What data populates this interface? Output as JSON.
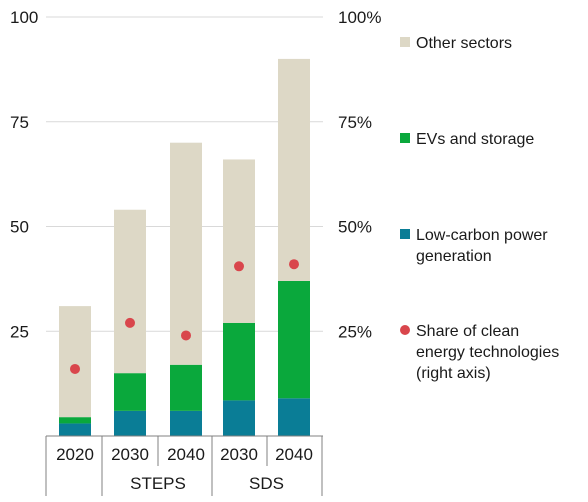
{
  "chart_data": {
    "type": "bar",
    "stacked": true,
    "categories": [
      "2020",
      "2030",
      "2040",
      "2030",
      "2040"
    ],
    "groups": [
      {
        "label": "",
        "categories": [
          0
        ]
      },
      {
        "label": "STEPS",
        "categories": [
          1,
          2
        ]
      },
      {
        "label": "SDS",
        "categories": [
          3,
          4
        ]
      }
    ],
    "series": [
      {
        "name": "Low-carbon power generation",
        "color": "#0a7d96",
        "values": [
          3,
          6,
          6,
          8.5,
          9
        ]
      },
      {
        "name": "EVs and storage",
        "color": "#0aa83c",
        "values": [
          1.5,
          9,
          11,
          18.5,
          28
        ]
      },
      {
        "name": "Other sectors",
        "color": "#ddd8c6",
        "values": [
          26.5,
          39,
          53,
          39,
          53
        ]
      }
    ],
    "dots": {
      "name": "Share of clean energy technologies (right axis)",
      "color": "#d9464c",
      "values": [
        16,
        27,
        24,
        40.5,
        41
      ]
    },
    "left_axis": {
      "min": 0,
      "max": 100,
      "ticks": [
        "25",
        "50",
        "75",
        "100"
      ],
      "tick_values": [
        25,
        50,
        75,
        100
      ]
    },
    "right_axis": {
      "min": 0,
      "max": 100,
      "ticks": [
        "25%",
        "50%",
        "75%",
        "100%"
      ],
      "tick_values": [
        25,
        50,
        75,
        100
      ]
    },
    "legend": [
      {
        "label_lines": [
          "Other sectors"
        ],
        "color": "#ddd8c6",
        "marker": "square"
      },
      {
        "label_lines": [
          "EVs and storage"
        ],
        "color": "#0aa83c",
        "marker": "square"
      },
      {
        "label_lines": [
          "Low-carbon power",
          "generation"
        ],
        "color": "#0a7d96",
        "marker": "square"
      },
      {
        "label_lines": [
          "Share of clean",
          "energy technologies",
          "(right axis)"
        ],
        "color": "#d9464c",
        "marker": "circle"
      }
    ],
    "grid": true
  }
}
